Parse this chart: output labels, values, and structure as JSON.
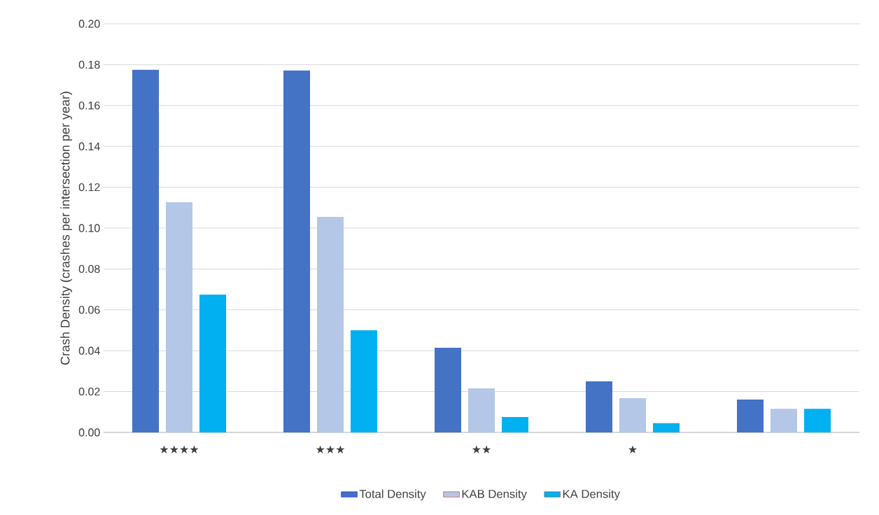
{
  "chart_data": {
    "type": "bar",
    "ylabel": "Crash Density (crashes per intersection per year)",
    "categories": [
      "★★★★",
      "★★★",
      "★★",
      "★",
      null
    ],
    "series": [
      {
        "name": "Total Density",
        "color": "#4472c4",
        "values": [
          0.1775,
          0.1771,
          0.0414,
          0.025,
          0.0161
        ]
      },
      {
        "name": "KAB Density",
        "color": "#b4c7e7",
        "values": [
          0.1127,
          0.1055,
          0.0216,
          0.0168,
          0.0116
        ]
      },
      {
        "name": "KA Density",
        "color": "#00b0f0",
        "values": [
          0.0675,
          0.05,
          0.0075,
          0.0045,
          0.0116
        ]
      }
    ],
    "ylim": [
      0,
      0.2
    ],
    "yticks": [
      {
        "value": 0,
        "label": "0.00"
      },
      {
        "value": 0.02,
        "label": "0.02"
      },
      {
        "value": 0.04,
        "label": "0.04"
      },
      {
        "value": 0.06,
        "label": "0.06"
      },
      {
        "value": 0.08,
        "label": "0.08"
      },
      {
        "value": 0.1,
        "label": "0.10"
      },
      {
        "value": 0.12,
        "label": "0.12"
      },
      {
        "value": 0.14,
        "label": "0.14"
      },
      {
        "value": 0.16,
        "label": "0.16"
      },
      {
        "value": 0.18,
        "label": "0.18"
      },
      {
        "value": 0.2,
        "label": "0.20"
      }
    ],
    "grid": "y",
    "legend": "bottom"
  }
}
